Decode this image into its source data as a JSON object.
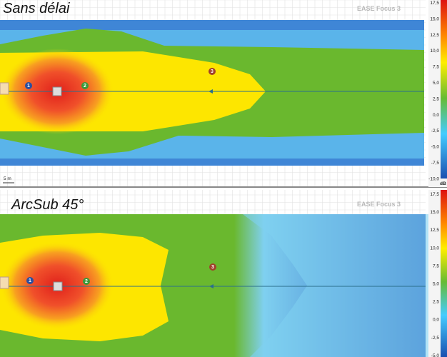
{
  "panels": [
    {
      "title": "Sans délai",
      "watermark": "EASE Focus 3",
      "scale": "5 m",
      "markers": [
        "1",
        "2",
        "3"
      ],
      "colorbar": {
        "ticks": [
          "17,5",
          "15,0",
          "12,5",
          "10,0",
          "7,5",
          "5,0",
          "2,5",
          "0,0",
          "-2,5",
          "-5,0",
          "-7,5",
          "-10,0"
        ],
        "unit": "dB"
      }
    },
    {
      "title": "ArcSub 45°",
      "watermark": "EASE Focus 3",
      "markers": [
        "1",
        "2",
        "3"
      ],
      "colorbar": {
        "ticks": [
          "17,5",
          "15,0",
          "12,5",
          "10,0",
          "7,5",
          "5,0",
          "2,5",
          "0,0",
          "-2,5",
          "-5,0"
        ]
      }
    }
  ]
}
